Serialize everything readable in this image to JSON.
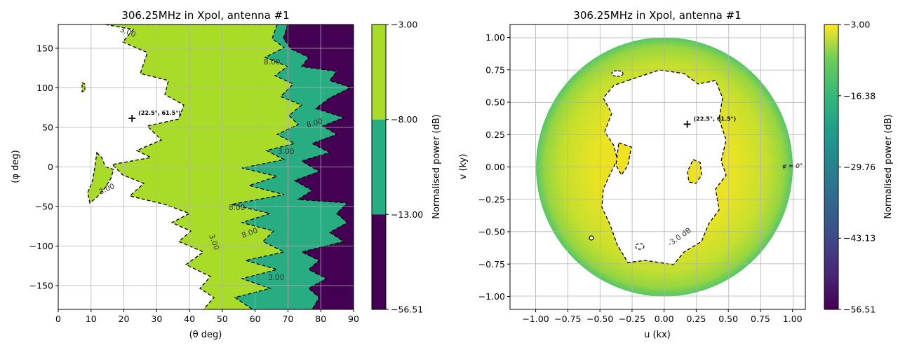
{
  "chart_data": [
    {
      "type": "heatmap",
      "subtype": "filled-contour",
      "title": "306.25MHz in Xpol, antenna #1",
      "xlabel": "(θ deg)",
      "ylabel": "(φ deg)",
      "xlim": [
        0,
        90
      ],
      "ylim": [
        -180,
        180
      ],
      "xticks": [
        "0",
        "10",
        "20",
        "30",
        "40",
        "50",
        "60",
        "70",
        "80",
        "90"
      ],
      "yticks": [
        "-150",
        "-100",
        "-50",
        "0",
        "50",
        "100",
        "150"
      ],
      "grid": true,
      "contour_levels": [
        -3.0,
        -8.0,
        -13.0
      ],
      "contour_labels": [
        "3.00",
        "3.00",
        "3.00",
        "8.00",
        "8.00",
        "3.00",
        "8.00",
        "8.00",
        "3.00"
      ],
      "marker": {
        "x": 22.5,
        "y": 61.5,
        "label": "(22.5°, 61.5°)"
      },
      "colorbar": {
        "label": "Normalised power (dB)",
        "ticks": [
          "-3.00",
          "-8.00",
          "-13.00",
          "-56.51"
        ],
        "bands": [
          {
            "from": -3.0,
            "to": -8.0,
            "color": "#a9dc29"
          },
          {
            "from": -8.0,
            "to": -13.0,
            "color": "#27ad81"
          },
          {
            "from": -13.0,
            "to": -56.51,
            "color": "#440154"
          }
        ]
      },
      "colors": {
        "above_max": "#ffffff",
        "band1": "#a9dc29",
        "band2": "#27ad81",
        "band3": "#440154"
      }
    },
    {
      "type": "heatmap",
      "subtype": "uv-projection",
      "title": "306.25MHz in Xpol, antenna #1",
      "xlabel": "u (kx)",
      "ylabel": "v (ky)",
      "xlim": [
        -1.2,
        1.1
      ],
      "ylim": [
        -1.1,
        1.1
      ],
      "xticks": [
        "-1.00",
        "-0.75",
        "-0.50",
        "-0.25",
        "0.00",
        "0.25",
        "0.50",
        "0.75",
        "1.00"
      ],
      "yticks": [
        "-1.00",
        "-0.75",
        "-0.50",
        "-0.25",
        "0.00",
        "0.25",
        "0.50",
        "0.75",
        "1.00"
      ],
      "grid": true,
      "contour_level": -3.0,
      "contour_label": "-3.0 dB",
      "edge_label": "φ = 0°",
      "marker": {
        "x": 0.18,
        "y": 0.33,
        "label": "(22.5°, 61.5°)"
      },
      "colorbar": {
        "label": "Normalised power (dB)",
        "ticks": [
          "-3.00",
          "-16.38",
          "-29.76",
          "-43.13",
          "-56.51"
        ],
        "range": [
          -56.51,
          -3.0
        ],
        "colormap": "viridis"
      }
    }
  ]
}
